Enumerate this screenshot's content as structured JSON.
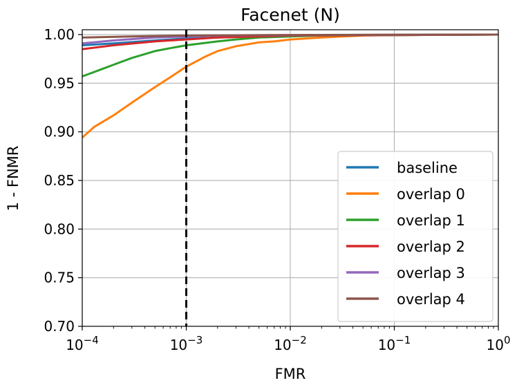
{
  "chart_data": {
    "type": "line",
    "title": "Facenet (N)",
    "xlabel": "FMR",
    "ylabel": "1 - FNMR",
    "x_scale": "log",
    "xlim": [
      0.0001,
      1
    ],
    "ylim": [
      0.7,
      1.005
    ],
    "x_ticks": [
      {
        "value": 0.0001,
        "base": "10",
        "exp": "−4"
      },
      {
        "value": 0.001,
        "base": "10",
        "exp": "−3"
      },
      {
        "value": 0.01,
        "base": "10",
        "exp": "−2"
      },
      {
        "value": 0.1,
        "base": "10",
        "exp": "−1"
      },
      {
        "value": 1,
        "base": "10",
        "exp": "0"
      }
    ],
    "y_ticks": [
      {
        "value": 0.7,
        "label": "0.70"
      },
      {
        "value": 0.75,
        "label": "0.75"
      },
      {
        "value": 0.8,
        "label": "0.80"
      },
      {
        "value": 0.85,
        "label": "0.85"
      },
      {
        "value": 0.9,
        "label": "0.90"
      },
      {
        "value": 0.95,
        "label": "0.95"
      },
      {
        "value": 1.0,
        "label": "1.00"
      }
    ],
    "grid": true,
    "legend_position": "bottom-right",
    "reference_line": {
      "x": 0.001,
      "style": "dashed",
      "color": "#000000"
    },
    "series": [
      {
        "name": "baseline",
        "color": "#1f77b4",
        "x": [
          0.0001,
          0.0002,
          0.0005,
          0.001,
          0.002,
          0.005,
          0.01,
          0.1,
          1
        ],
        "y": [
          0.989,
          0.991,
          0.994,
          0.996,
          0.997,
          0.998,
          0.999,
          0.9995,
          1.0
        ]
      },
      {
        "name": "overlap 0",
        "color": "#ff7f0e",
        "x": [
          0.0001,
          0.00013,
          0.0002,
          0.0003,
          0.0005,
          0.0007,
          0.001,
          0.0015,
          0.002,
          0.003,
          0.005,
          0.007,
          0.01,
          0.02,
          0.05,
          0.1,
          1
        ],
        "y": [
          0.894,
          0.905,
          0.917,
          0.93,
          0.946,
          0.956,
          0.967,
          0.977,
          0.983,
          0.988,
          0.992,
          0.993,
          0.995,
          0.997,
          0.999,
          0.9995,
          1.0
        ]
      },
      {
        "name": "overlap 1",
        "color": "#2ca02c",
        "x": [
          0.0001,
          0.00015,
          0.0002,
          0.0003,
          0.0005,
          0.0007,
          0.001,
          0.002,
          0.003,
          0.005,
          0.01,
          0.02,
          0.1,
          1
        ],
        "y": [
          0.957,
          0.964,
          0.969,
          0.976,
          0.983,
          0.986,
          0.989,
          0.993,
          0.995,
          0.997,
          0.998,
          0.999,
          0.9995,
          1.0
        ]
      },
      {
        "name": "overlap 2",
        "color": "#d62728",
        "x": [
          0.0001,
          0.0002,
          0.0005,
          0.001,
          0.002,
          0.005,
          0.01,
          0.1,
          1
        ],
        "y": [
          0.985,
          0.989,
          0.993,
          0.995,
          0.997,
          0.998,
          0.999,
          0.9995,
          1.0
        ]
      },
      {
        "name": "overlap 3",
        "color": "#9467bd",
        "x": [
          0.0001,
          0.0002,
          0.0005,
          0.001,
          0.002,
          0.005,
          0.01,
          0.1,
          1
        ],
        "y": [
          0.991,
          0.994,
          0.997,
          0.998,
          0.999,
          0.9993,
          0.9995,
          0.9998,
          1.0
        ]
      },
      {
        "name": "overlap 4",
        "color": "#8c564b",
        "x": [
          0.0001,
          0.0003,
          0.001,
          0.003,
          0.01,
          0.1,
          1
        ],
        "y": [
          0.997,
          0.998,
          0.999,
          0.9993,
          0.9996,
          0.9998,
          1.0
        ]
      }
    ]
  }
}
